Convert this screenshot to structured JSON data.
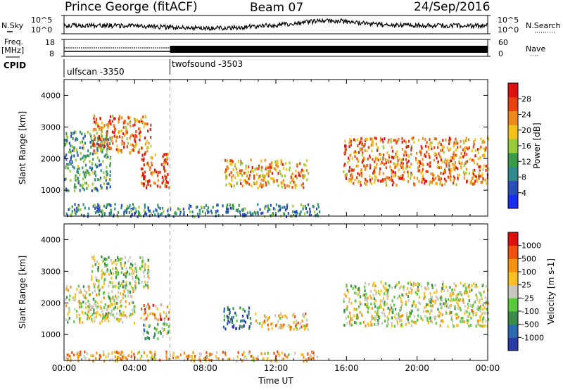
{
  "header": {
    "title": "Prince George (fitACF)",
    "beam": "Beam 07",
    "date": "24/Sep/2016"
  },
  "panels": {
    "sky_label": "N.Sky",
    "search_label": "N.Search",
    "freq_label_top": "Freq.",
    "freq_label_unit": "[MHz]",
    "nave_label": "Nave",
    "cpid_label": "CPID",
    "sky_ticks": [
      "10^5",
      "10^0"
    ],
    "search_ticks": [
      "10^5",
      "10^0"
    ],
    "freq_ticks": [
      "18",
      "8"
    ],
    "nave_ticks": [
      "60",
      "0"
    ],
    "cpid_modes": [
      {
        "name": "ulfscan -3350",
        "start_hour": 0,
        "end_hour": 6
      },
      {
        "name": "twofsound -3503",
        "start_hour": 6,
        "end_hour": 24
      }
    ]
  },
  "colors": {
    "power": [
      "#1a2cf0",
      "#2a4fb8",
      "#2f8a8a",
      "#3a9a4a",
      "#9acb3a",
      "#f2c21a",
      "#f08a1a",
      "#e84010",
      "#e01010"
    ],
    "velocity": [
      "#2a3aa8",
      "#2a6ab0",
      "#3a8a4a",
      "#5ac83a",
      "#c8c8c0",
      "#f8c020",
      "#f89010",
      "#f05010",
      "#e01010"
    ]
  },
  "chart_data": [
    {
      "type": "heatmap",
      "name": "power",
      "ylabel": "Slant Range [km]",
      "xlabel": "",
      "y_ticks": [
        "1000",
        "2000",
        "3000",
        "4000"
      ],
      "ylim": [
        180,
        4500
      ],
      "xlim": [
        0,
        24
      ],
      "colorbar_label": "Power [dB]",
      "colorbar_ticks": [
        "4",
        "8",
        "12",
        "16",
        "20",
        "24",
        "28"
      ],
      "clim": [
        0,
        32
      ],
      "regions": [
        {
          "t0": 0.0,
          "t1": 2.6,
          "r0": 1000,
          "r1": 2900,
          "level": 0.35
        },
        {
          "t0": 1.6,
          "t1": 4.9,
          "r0": 2200,
          "r1": 3400,
          "level": 0.75
        },
        {
          "t0": 4.3,
          "t1": 5.9,
          "r0": 1100,
          "r1": 2200,
          "level": 0.85
        },
        {
          "t0": 9.0,
          "t1": 13.8,
          "r0": 1100,
          "r1": 2000,
          "level": 0.7
        },
        {
          "t0": 15.8,
          "t1": 24.0,
          "r0": 1200,
          "r1": 2700,
          "level": 0.75
        },
        {
          "t0": 0.0,
          "t1": 14.5,
          "r0": 200,
          "r1": 600,
          "level": 0.3
        }
      ]
    },
    {
      "type": "heatmap",
      "name": "velocity",
      "ylabel": "Slant Range [km]",
      "xlabel": "Time UT",
      "x_ticks": [
        "00:00",
        "04:00",
        "08:00",
        "12:00",
        "16:00",
        "20:00",
        "00:00"
      ],
      "y_ticks": [
        "1000",
        "2000",
        "3000",
        "4000"
      ],
      "ylim": [
        180,
        4500
      ],
      "xlim": [
        0,
        24
      ],
      "colorbar_label": "Velocity [m s-1]",
      "colorbar_ticks": [
        "1000",
        "500",
        "100",
        "25",
        "-25",
        "-100",
        "-500",
        "-1000"
      ],
      "clim": [
        -1000,
        1000
      ],
      "regions": [
        {
          "t0": 0.0,
          "t1": 4.0,
          "r0": 1400,
          "r1": 2600,
          "level": 0.5
        },
        {
          "t0": 1.5,
          "t1": 4.8,
          "r0": 2500,
          "r1": 3500,
          "level": 0.45
        },
        {
          "t0": 4.3,
          "t1": 5.9,
          "r0": 1500,
          "r1": 2000,
          "level": 0.7
        },
        {
          "t0": 4.4,
          "t1": 5.9,
          "r0": 900,
          "r1": 1400,
          "level": 0.38
        },
        {
          "t0": 9.0,
          "t1": 10.6,
          "r0": 1200,
          "r1": 1900,
          "level": 0.15
        },
        {
          "t0": 10.8,
          "t1": 13.8,
          "r0": 1200,
          "r1": 1700,
          "level": 0.62
        },
        {
          "t0": 15.8,
          "t1": 24.0,
          "r0": 1300,
          "r1": 2700,
          "level": 0.5
        },
        {
          "t0": 0.0,
          "t1": 14.5,
          "r0": 200,
          "r1": 500,
          "level": 0.65
        }
      ]
    }
  ]
}
